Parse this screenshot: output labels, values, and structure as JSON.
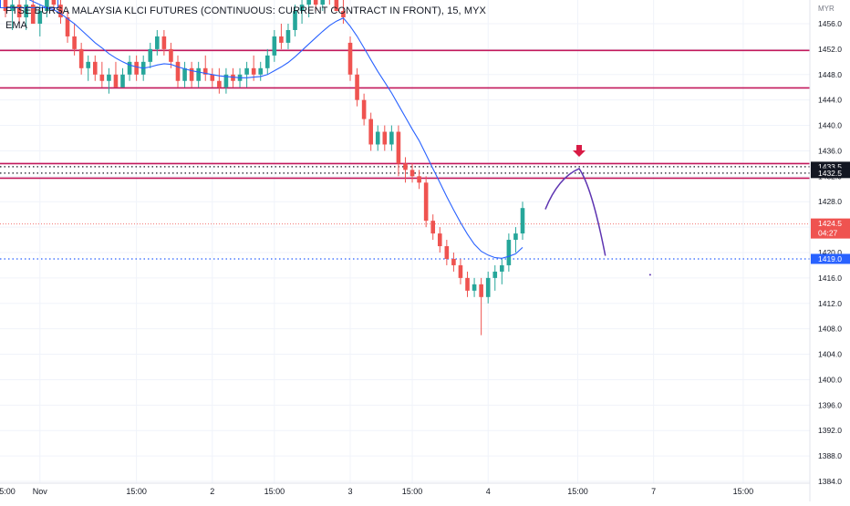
{
  "header": {
    "symbol_title": "FTSE BURSA MALAYSIA KLCI FUTURES (CONTINUOUS: CURRENT CONTRACT IN FRONT), 15, MYX",
    "indicator_label": "EMA",
    "currency": "MYR"
  },
  "colors": {
    "up": "#26a69a",
    "down": "#ef5350",
    "ema": "#2962ff",
    "zone": "#c2185b",
    "drawing": "#5e35b1",
    "dotted_navy": "#131722",
    "dotted_blue": "#2962ff",
    "grid": "#f0f3fa"
  },
  "chart_data": {
    "type": "candlestick",
    "title": "FTSE BURSA MALAYSIA KLCI FUTURES (CONTINUOUS: CURRENT CONTRACT IN FRONT), 15, MYX",
    "ylim": [
      1383,
      1460
    ],
    "y_ticks": [
      1456.0,
      1452.0,
      1448.0,
      1444.0,
      1440.0,
      1436.0,
      1432.0,
      1428.0,
      1424.0,
      1420.0,
      1416.0,
      1412.0,
      1408.0,
      1404.0,
      1400.0,
      1396.0,
      1392.0,
      1388.0,
      1384.0
    ],
    "x_ticks": [
      {
        "label": "5:00",
        "i": -6
      },
      {
        "label": "Nov",
        "i": 5
      },
      {
        "label": "15:00",
        "i": 19
      },
      {
        "label": "2",
        "i": 30
      },
      {
        "label": "15:00",
        "i": 39
      },
      {
        "label": "3",
        "i": 50
      },
      {
        "label": "15:00",
        "i": 59
      },
      {
        "label": "4",
        "i": 70
      },
      {
        "label": "15:00",
        "i": 83
      },
      {
        "label": "7",
        "i": 94
      },
      {
        "label": "15:00",
        "i": 107
      }
    ],
    "candles": [
      [
        1461,
        1462,
        1457,
        1458
      ],
      [
        1458,
        1460,
        1455,
        1459
      ],
      [
        1459,
        1461,
        1456,
        1457
      ],
      [
        1457,
        1460,
        1455,
        1459
      ],
      [
        1459,
        1461,
        1456,
        1456
      ],
      [
        1456,
        1459,
        1454,
        1458
      ],
      [
        1458,
        1462,
        1457,
        1461
      ],
      [
        1461,
        1462,
        1458,
        1459
      ],
      [
        1459,
        1461,
        1456,
        1457
      ],
      [
        1457,
        1458,
        1453,
        1454
      ],
      [
        1454,
        1456,
        1451,
        1452
      ],
      [
        1452,
        1453,
        1448,
        1449
      ],
      [
        1449,
        1451,
        1447,
        1450
      ],
      [
        1450,
        1451,
        1447,
        1448
      ],
      [
        1448,
        1450,
        1446,
        1447
      ],
      [
        1447,
        1449,
        1445,
        1448
      ],
      [
        1448,
        1450,
        1446,
        1446
      ],
      [
        1446,
        1449,
        1446,
        1448
      ],
      [
        1448,
        1451,
        1447,
        1450
      ],
      [
        1450,
        1451,
        1447,
        1448
      ],
      [
        1448,
        1451,
        1447,
        1450
      ],
      [
        1450,
        1453,
        1449,
        1452
      ],
      [
        1452,
        1455,
        1451,
        1454
      ],
      [
        1454,
        1455,
        1451,
        1452
      ],
      [
        1452,
        1453,
        1449,
        1450
      ],
      [
        1450,
        1451,
        1446,
        1447
      ],
      [
        1447,
        1450,
        1446,
        1449
      ],
      [
        1449,
        1450,
        1446,
        1447
      ],
      [
        1447,
        1450,
        1446,
        1449
      ],
      [
        1449,
        1451,
        1447,
        1448
      ],
      [
        1448,
        1449,
        1446,
        1447
      ],
      [
        1447,
        1449,
        1445,
        1446
      ],
      [
        1446,
        1449,
        1445,
        1448
      ],
      [
        1448,
        1449,
        1446,
        1447
      ],
      [
        1447,
        1449,
        1446,
        1448
      ],
      [
        1448,
        1450,
        1446,
        1449
      ],
      [
        1449,
        1451,
        1447,
        1448
      ],
      [
        1448,
        1450,
        1447,
        1449
      ],
      [
        1449,
        1452,
        1448,
        1451
      ],
      [
        1451,
        1455,
        1450,
        1454
      ],
      [
        1454,
        1456,
        1452,
        1453
      ],
      [
        1453,
        1456,
        1452,
        1455
      ],
      [
        1455,
        1459,
        1454,
        1458
      ],
      [
        1458,
        1460,
        1456,
        1459
      ],
      [
        1459,
        1461,
        1457,
        1460
      ],
      [
        1460,
        1462,
        1458,
        1459
      ],
      [
        1459,
        1462,
        1458,
        1461
      ],
      [
        1461,
        1462,
        1459,
        1460
      ],
      [
        1460,
        1462,
        1458,
        1458
      ],
      [
        1458,
        1460,
        1456,
        1457
      ],
      [
        1453,
        1454,
        1447,
        1448
      ],
      [
        1448,
        1449,
        1443,
        1444
      ],
      [
        1444,
        1445,
        1440,
        1441
      ],
      [
        1441,
        1442,
        1436,
        1437
      ],
      [
        1437,
        1440,
        1436,
        1439
      ],
      [
        1439,
        1440,
        1436,
        1437
      ],
      [
        1437,
        1440,
        1436,
        1439
      ],
      [
        1439,
        1440,
        1432,
        1434
      ],
      [
        1434,
        1435,
        1431,
        1433
      ],
      [
        1433,
        1434,
        1431,
        1432
      ],
      [
        1432,
        1433,
        1430,
        1431
      ],
      [
        1431,
        1432,
        1424,
        1425
      ],
      [
        1425,
        1426,
        1422,
        1423
      ],
      [
        1423,
        1424,
        1420,
        1421
      ],
      [
        1421,
        1422,
        1418,
        1419
      ],
      [
        1419,
        1420,
        1417,
        1418
      ],
      [
        1418,
        1419,
        1415,
        1416
      ],
      [
        1416,
        1417,
        1413,
        1414
      ],
      [
        1414,
        1416,
        1413,
        1415
      ],
      [
        1415,
        1416,
        1407,
        1413
      ],
      [
        1413,
        1417,
        1412,
        1416
      ],
      [
        1416,
        1418,
        1414,
        1417
      ],
      [
        1417,
        1419,
        1415,
        1418
      ],
      [
        1418,
        1423,
        1417,
        1422
      ],
      [
        1422,
        1424,
        1420,
        1423
      ],
      [
        1423,
        1428,
        1422,
        1427
      ]
    ],
    "ema": [
      1461.5,
      1461.0,
      1460.5,
      1460.0,
      1459.5,
      1459.0,
      1458.5,
      1458.2,
      1457.6,
      1456.8,
      1456.0,
      1455.0,
      1454.0,
      1453.0,
      1452.2,
      1451.3,
      1450.6,
      1450.0,
      1449.5,
      1449.2,
      1449.0,
      1449.2,
      1449.5,
      1449.7,
      1449.6,
      1449.2,
      1448.9,
      1448.6,
      1448.4,
      1448.2,
      1448.0,
      1447.8,
      1447.7,
      1447.6,
      1447.5,
      1447.5,
      1447.6,
      1447.7,
      1448.0,
      1448.6,
      1449.2,
      1449.9,
      1450.8,
      1451.8,
      1452.8,
      1453.8,
      1454.8,
      1455.7,
      1456.4,
      1456.9,
      1455.6,
      1454.0,
      1452.2,
      1450.3,
      1448.5,
      1446.8,
      1445.1,
      1443.2,
      1441.3,
      1439.4,
      1437.6,
      1435.4,
      1433.2,
      1431.0,
      1428.8,
      1426.7,
      1424.7,
      1422.9,
      1421.3,
      1420.2,
      1419.6,
      1419.2,
      1419.1,
      1419.4,
      1419.8,
      1420.8
    ],
    "price_lines": [
      {
        "kind": "zone",
        "value": 1451.8
      },
      {
        "kind": "zone",
        "value": 1445.9
      },
      {
        "kind": "zone",
        "value": 1434.0
      },
      {
        "kind": "zone",
        "value": 1431.7
      },
      {
        "kind": "dotted",
        "value": 1433.5,
        "label": "1433.5"
      },
      {
        "kind": "dotted",
        "value": 1432.5,
        "label": "1432.5"
      },
      {
        "kind": "dotted_blue",
        "value": 1419.0,
        "label": "1419.0"
      },
      {
        "kind": "last",
        "value": 1424.5,
        "label": "1424.5",
        "sub": "04:27"
      }
    ],
    "projection_path": [
      [
        78.3,
        1426.8
      ],
      [
        83.2,
        1433.2
      ],
      [
        87.0,
        1419.5
      ]
    ],
    "arrow_at": [
      83.2,
      1435.2
    ],
    "stray_dot": [
      93.5,
      1416.5
    ]
  }
}
